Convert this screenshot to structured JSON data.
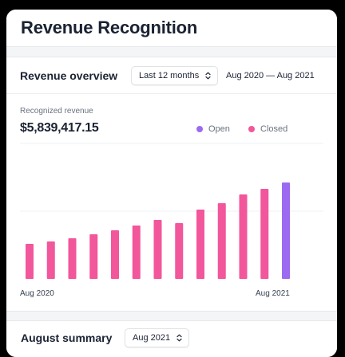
{
  "app": {
    "title": "Revenue Recognition"
  },
  "overview": {
    "title": "Revenue overview",
    "period_select": "Last 12 months",
    "date_range": "Aug 2020 — Aug 2021",
    "metric_label": "Recognized revenue",
    "metric_value": "$5,839,417.15",
    "legend": {
      "open": "Open",
      "closed": "Closed"
    },
    "colors": {
      "open": "#9b6af0",
      "closed": "#f2569b",
      "grid": "#eef0f3"
    }
  },
  "chart_data": {
    "type": "bar",
    "x_labels": [
      "Aug 2020",
      "Aug 2021"
    ],
    "categories": [
      "Aug 2020",
      "",
      "",
      "",
      "",
      "",
      "",
      "",
      "",
      "",
      "",
      "",
      "Aug 2021"
    ],
    "series": [
      {
        "name": "Closed",
        "values": [
          44,
          47,
          51,
          56,
          61,
          67,
          74,
          70,
          87,
          95,
          106,
          113,
          null
        ]
      },
      {
        "name": "Open",
        "values": [
          null,
          null,
          null,
          null,
          null,
          null,
          null,
          null,
          null,
          null,
          null,
          null,
          121
        ]
      }
    ],
    "ylim": [
      0,
      170
    ],
    "grid": true,
    "legend_position": "top-right"
  },
  "summary": {
    "title": "August summary",
    "period_select": "Aug 2021"
  }
}
